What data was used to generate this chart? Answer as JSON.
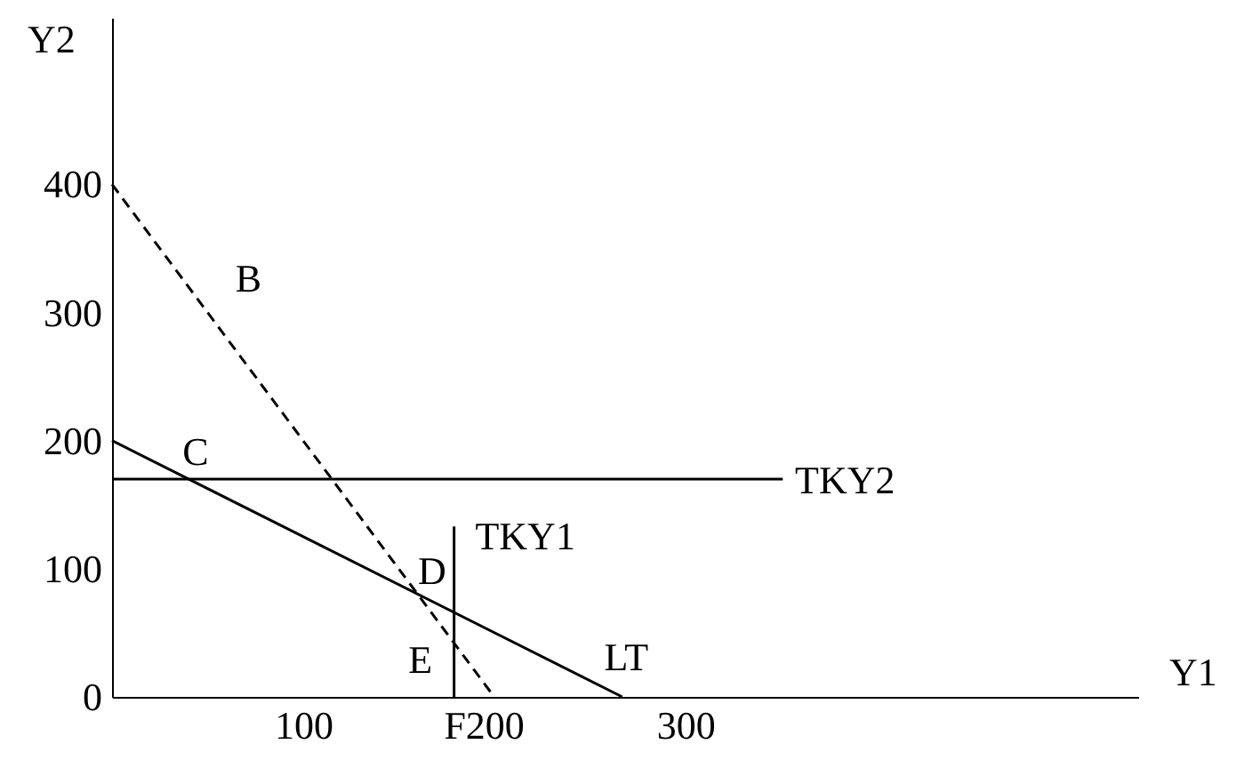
{
  "chart_data": {
    "type": "line",
    "xlabel": "Y1",
    "ylabel": "Y2",
    "xlim": [
      0,
      537
    ],
    "ylim": [
      0,
      530
    ],
    "xticks": [
      100,
      {
        "value": 179,
        "label": "F"
      },
      200,
      300
    ],
    "yticks": [
      0,
      100,
      200,
      300,
      400
    ],
    "grid": false,
    "marker": "none",
    "series": [
      {
        "color": "#000000",
        "line_style": "dashed",
        "x": [
          0,
          200
        ],
        "values": [
          400,
          0
        ]
      },
      {
        "color": "#000000",
        "line_style": "solid",
        "x": [
          0,
          267
        ],
        "values": [
          200,
          0
        ]
      },
      {
        "color": "#000000",
        "line_style": "solid",
        "x": [
          179,
          179
        ],
        "values": [
          0,
          133
        ]
      },
      {
        "color": "#000000",
        "line_style": "solid",
        "x": [
          0,
          351
        ],
        "values": [
          170,
          170
        ]
      }
    ],
    "annotations": [
      {
        "text": "B",
        "x": 37,
        "y": 326
      },
      {
        "text": "C",
        "x": 40,
        "y": 170
      },
      {
        "text": "D",
        "x": 160,
        "y": 80
      },
      {
        "text": "E",
        "x": 179,
        "y": 42
      },
      {
        "text": "LT",
        "x": 230,
        "y": 28
      },
      {
        "text": "TKY1",
        "x": 179,
        "y": 133
      },
      {
        "text": "TKY2",
        "x": 351,
        "y": 170
      }
    ]
  }
}
